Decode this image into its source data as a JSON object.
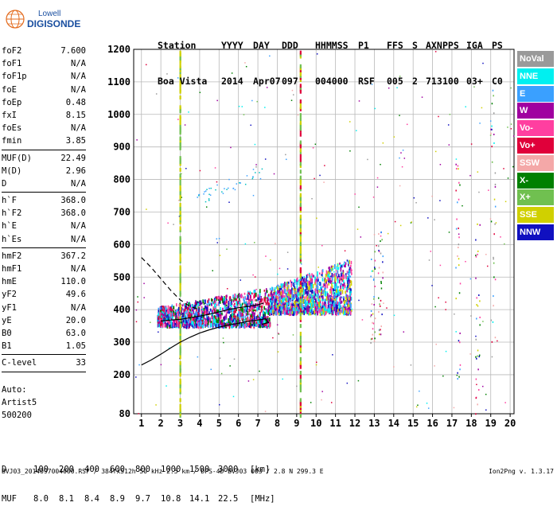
{
  "logo": {
    "line1": "Lowell",
    "line2": "DIGISONDE"
  },
  "header": {
    "row1": [
      "Station",
      "YYYY",
      "DAY",
      "DDD",
      "HHMMSS",
      "P1",
      "FFS",
      "S",
      "AXN",
      "PPS",
      "IGA",
      "PS"
    ],
    "row2": [
      "Boa Vista",
      "2014",
      "Apr07",
      "097",
      "004000",
      "RSF",
      "005",
      "2",
      "713",
      "100",
      "03+",
      "C0"
    ]
  },
  "params": [
    {
      "name": "foF2",
      "value": "7.600"
    },
    {
      "name": "foF1",
      "value": "N/A"
    },
    {
      "name": "foF1p",
      "value": "N/A"
    },
    {
      "name": "foE",
      "value": "N/A"
    },
    {
      "name": "foEp",
      "value": "0.48"
    },
    {
      "name": "fxI",
      "value": "8.15"
    },
    {
      "name": "foEs",
      "value": "N/A"
    },
    {
      "name": "fmin",
      "value": "3.85"
    },
    {
      "sep": true
    },
    {
      "name": "MUF(D)",
      "value": "22.49"
    },
    {
      "name": "M(D)",
      "value": "2.96"
    },
    {
      "name": "D",
      "value": "N/A"
    },
    {
      "sep": true
    },
    {
      "name": "h`F",
      "value": "368.0"
    },
    {
      "name": "h`F2",
      "value": "368.0"
    },
    {
      "name": "h`E",
      "value": "N/A"
    },
    {
      "name": "h`Es",
      "value": "N/A"
    },
    {
      "sep": true
    },
    {
      "name": "hmF2",
      "value": "367.2"
    },
    {
      "name": "hmF1",
      "value": "N/A"
    },
    {
      "name": "hmE",
      "value": "110.0"
    },
    {
      "name": "yF2",
      "value": "49.6"
    },
    {
      "name": "yF1",
      "value": "N/A"
    },
    {
      "name": "yE",
      "value": "20.0"
    },
    {
      "name": "B0",
      "value": "63.0"
    },
    {
      "name": "B1",
      "value": "1.05"
    },
    {
      "sep": true
    },
    {
      "name": "C-level",
      "value": "33"
    },
    {
      "sep": true
    }
  ],
  "auto": {
    "line1": "Auto:",
    "line2": "Artist5",
    "line3": "500200"
  },
  "legend": [
    {
      "label": "NoVal",
      "color": "#9a9a9a"
    },
    {
      "label": "NNE",
      "color": "#00f0f0"
    },
    {
      "label": "E",
      "color": "#3aa0ff"
    },
    {
      "label": "W",
      "color": "#a000a0"
    },
    {
      "label": "Vo-",
      "color": "#ff3fa0"
    },
    {
      "label": "Vo+",
      "color": "#e0003a"
    },
    {
      "label": "SSW",
      "color": "#f4a8a8"
    },
    {
      "label": "X-",
      "color": "#008000"
    },
    {
      "label": "X+",
      "color": "#70c050"
    },
    {
      "label": "SSE",
      "color": "#d0d000"
    },
    {
      "label": "NNW",
      "color": "#1010c0"
    }
  ],
  "muf_table": {
    "d_label": "D",
    "d_values": [
      "100",
      "200",
      "400",
      "600",
      "800",
      "1000",
      "1500",
      "3000"
    ],
    "d_unit": "[km]",
    "muf_label": "MUF",
    "muf_values": [
      "8.0",
      "8.1",
      "8.4",
      "8.9",
      "9.7",
      "10.8",
      "14.1",
      "22.5"
    ],
    "muf_unit": "[MHz]"
  },
  "footer": "BVJ03_2014097004000.RSF / 384fx512h 50 kHz 2.5 km / DPS-4D BVJ03 003 / 2.8 N 299.3 E",
  "version": "Ion2Png v. 1.3.17",
  "chart_data": {
    "type": "scatter",
    "xlim": [
      0.6,
      20.2
    ],
    "ylim": [
      80,
      1200
    ],
    "x_ticks": [
      1,
      2,
      3,
      4,
      5,
      6,
      7,
      8,
      9,
      10,
      11,
      12,
      13,
      14,
      15,
      16,
      17,
      18,
      19,
      20
    ],
    "y_ticks": [
      80,
      200,
      300,
      400,
      500,
      600,
      700,
      800,
      900,
      1000,
      1100,
      1200
    ],
    "grid": true,
    "xlabel": "",
    "ylabel": "",
    "traces": [
      {
        "style": "dashed",
        "x": [
          1.0,
          1.5,
          2.0,
          2.5,
          3.0,
          3.5,
          4.0
        ],
        "y": [
          560,
          530,
          495,
          460,
          430,
          410,
          400
        ]
      },
      {
        "style": "solid",
        "x": [
          2.0,
          2.5,
          3.0,
          3.5,
          4.0,
          4.5,
          5.0,
          5.5,
          6.0,
          6.5,
          7.0,
          7.3
        ],
        "y": [
          365,
          368,
          370,
          375,
          380,
          386,
          393,
          400,
          406,
          410,
          415,
          420
        ]
      },
      {
        "style": "solid",
        "x": [
          1.0,
          1.5,
          2.0,
          2.5,
          3.0,
          3.5,
          4.0,
          4.5,
          5.0,
          5.5,
          6.0,
          6.5,
          7.0,
          7.4,
          7.55,
          7.2
        ],
        "y": [
          230,
          245,
          263,
          282,
          300,
          315,
          328,
          338,
          346,
          353,
          358,
          364,
          368,
          372,
          360,
          355
        ]
      }
    ],
    "echo_bands": [
      {
        "x_range": [
          1.8,
          7.6
        ],
        "y_from": 355,
        "y_to_start": 410,
        "y_to_end": 470,
        "colors": [
          "#a000a0",
          "#1010c0",
          "#00f0f0",
          "#3aa0ff",
          "#ff3fa0",
          "#008000",
          "#e0003a"
        ]
      },
      {
        "x_range": [
          7.6,
          11.8
        ],
        "y_from": 395,
        "y_to_start": 470,
        "y_to_end": 560,
        "colors": [
          "#a000a0",
          "#00f0f0",
          "#3aa0ff",
          "#d0d000",
          "#ff3fa0",
          "#1010c0"
        ]
      }
    ],
    "vertical_lines": [
      {
        "x": 9.2,
        "y_range": [
          80,
          1200
        ],
        "colors": [
          "#e0003a",
          "#d0d000",
          "#70c050"
        ]
      },
      {
        "x": 3.0,
        "y_range": [
          80,
          1200
        ],
        "colors": [
          "#d0d000",
          "#70c050"
        ]
      }
    ]
  }
}
